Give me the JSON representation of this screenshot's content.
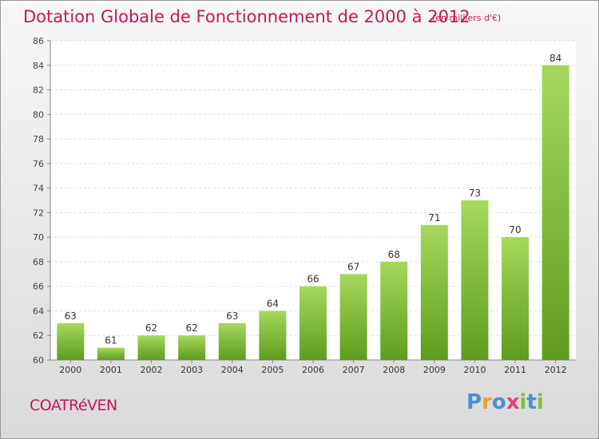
{
  "chart_data": {
    "type": "bar",
    "title": "Dotation Globale de Fonctionnement de 2000 à 2012",
    "unit_note": "(en milliers d'€)",
    "categories": [
      "2000",
      "2001",
      "2002",
      "2003",
      "2004",
      "2005",
      "2006",
      "2007",
      "2008",
      "2009",
      "2010",
      "2011",
      "2012"
    ],
    "values": [
      63,
      61,
      62,
      62,
      63,
      64,
      66,
      67,
      68,
      71,
      73,
      70,
      84
    ],
    "ylim": [
      60,
      86
    ],
    "yticks": [
      60,
      62,
      64,
      66,
      68,
      70,
      72,
      74,
      76,
      78,
      80,
      82,
      84,
      86
    ],
    "grid": true,
    "colors": {
      "bar_light": "#a6d85c",
      "bar_dark": "#5e9c1e",
      "title": "#c2185b"
    }
  },
  "commune": "COATRéVEN",
  "brand": {
    "letters": [
      "P",
      "r",
      "o",
      "x",
      "i",
      "t",
      "i"
    ],
    "colors": [
      "#4a8fd0",
      "#f0a020",
      "#4a8fd0",
      "#e04080",
      "#80c040",
      "#4a8fd0",
      "#80c040"
    ]
  }
}
